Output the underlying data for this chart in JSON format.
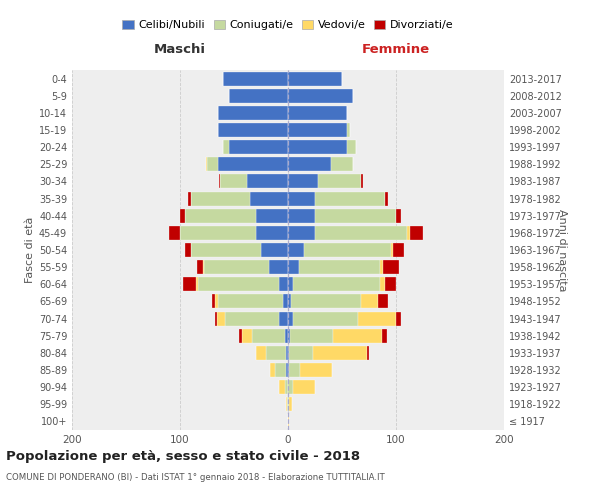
{
  "age_groups": [
    "100+",
    "95-99",
    "90-94",
    "85-89",
    "80-84",
    "75-79",
    "70-74",
    "65-69",
    "60-64",
    "55-59",
    "50-54",
    "45-49",
    "40-44",
    "35-39",
    "30-34",
    "25-29",
    "20-24",
    "15-19",
    "10-14",
    "5-9",
    "0-4"
  ],
  "birth_years": [
    "≤ 1917",
    "1918-1922",
    "1923-1927",
    "1928-1932",
    "1933-1937",
    "1938-1942",
    "1943-1947",
    "1948-1952",
    "1953-1957",
    "1958-1962",
    "1963-1967",
    "1968-1972",
    "1973-1977",
    "1978-1982",
    "1983-1987",
    "1988-1992",
    "1993-1997",
    "1998-2002",
    "2003-2007",
    "2008-2012",
    "2013-2017"
  ],
  "maschi": {
    "celibi": [
      0,
      0,
      0,
      2,
      2,
      3,
      8,
      5,
      8,
      18,
      25,
      30,
      30,
      35,
      38,
      65,
      55,
      65,
      65,
      55,
      60
    ],
    "coniugati": [
      0,
      1,
      3,
      10,
      18,
      30,
      50,
      60,
      75,
      60,
      65,
      70,
      65,
      55,
      25,
      10,
      5,
      0,
      0,
      0,
      0
    ],
    "vedovi": [
      0,
      1,
      5,
      5,
      10,
      10,
      8,
      3,
      2,
      1,
      0,
      0,
      0,
      0,
      0,
      1,
      0,
      0,
      0,
      0,
      0
    ],
    "divorziati": [
      0,
      0,
      0,
      0,
      0,
      2,
      2,
      2,
      12,
      5,
      5,
      10,
      5,
      3,
      1,
      0,
      0,
      0,
      0,
      0,
      0
    ]
  },
  "femmine": {
    "nubili": [
      0,
      0,
      0,
      1,
      1,
      2,
      5,
      3,
      5,
      10,
      15,
      25,
      25,
      25,
      28,
      40,
      55,
      55,
      55,
      60,
      50
    ],
    "coniugate": [
      0,
      1,
      5,
      10,
      22,
      40,
      60,
      65,
      80,
      75,
      80,
      85,
      75,
      65,
      40,
      20,
      8,
      2,
      0,
      0,
      0
    ],
    "vedove": [
      1,
      3,
      20,
      30,
      50,
      45,
      35,
      15,
      5,
      3,
      2,
      3,
      0,
      0,
      0,
      0,
      0,
      0,
      0,
      0,
      0
    ],
    "divorziate": [
      0,
      0,
      0,
      0,
      2,
      5,
      5,
      10,
      10,
      15,
      10,
      12,
      5,
      3,
      1,
      0,
      0,
      0,
      0,
      0,
      0
    ]
  },
  "colors": {
    "celibi_nubili": "#4472C4",
    "coniugati": "#C5D9A0",
    "vedovi": "#FFD966",
    "divorziati": "#C00000"
  },
  "title": "Popolazione per età, sesso e stato civile - 2018",
  "subtitle": "COMUNE DI PONDERANO (BI) - Dati ISTAT 1° gennaio 2018 - Elaborazione TUTTITALIA.IT",
  "xlabel_left": "Maschi",
  "xlabel_right": "Femmine",
  "ylabel_left": "Fasce di età",
  "ylabel_right": "Anni di nascita",
  "xlim": 200,
  "legend_labels": [
    "Celibi/Nubili",
    "Coniugati/e",
    "Vedovi/e",
    "Divorziati/e"
  ],
  "background_color": "#ffffff",
  "grid_color": "#cccccc"
}
